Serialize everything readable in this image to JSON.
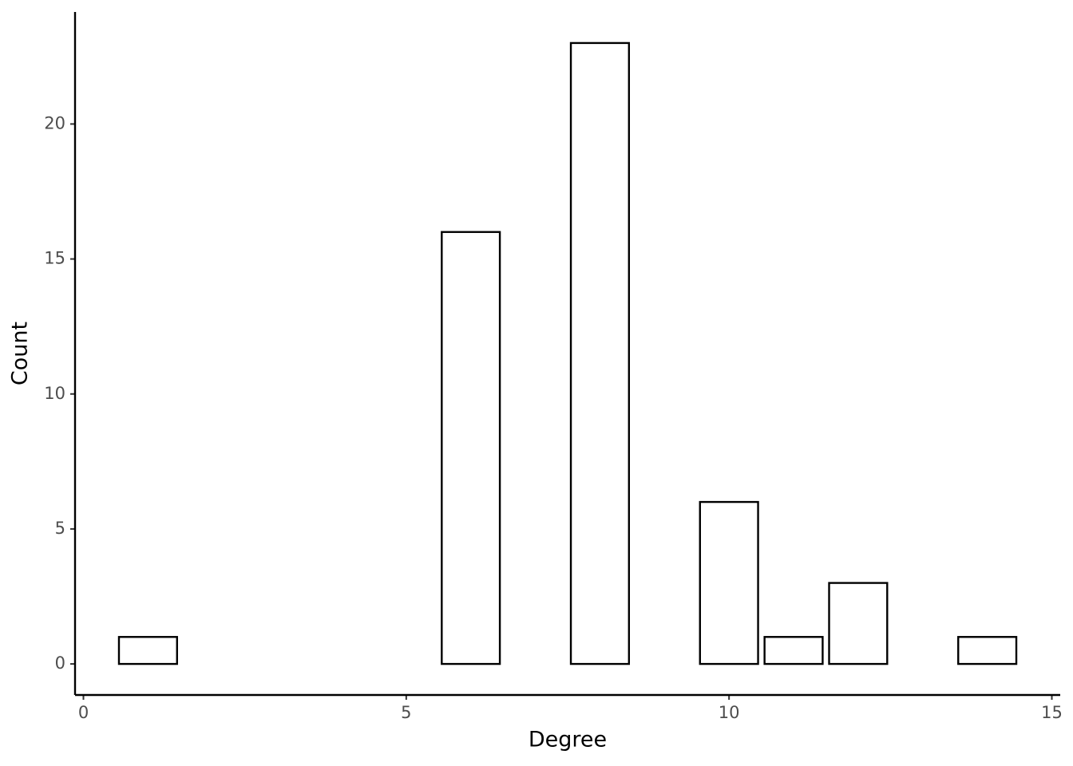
{
  "chart_data": {
    "type": "bar",
    "x": [
      1,
      6,
      8,
      10,
      11,
      12,
      14
    ],
    "values": [
      1,
      16,
      23,
      6,
      1,
      3,
      1
    ],
    "color": "#ffffff",
    "edge_color": "#000000",
    "xlabel": "Degree",
    "ylabel": "Count",
    "xlim": [
      -0.13,
      15.13
    ],
    "xticks": [
      0,
      5,
      10,
      15
    ],
    "ylim": [
      -1.15,
      24.15
    ],
    "yticks": [
      0,
      5,
      10,
      15,
      20
    ],
    "grid": false
  }
}
